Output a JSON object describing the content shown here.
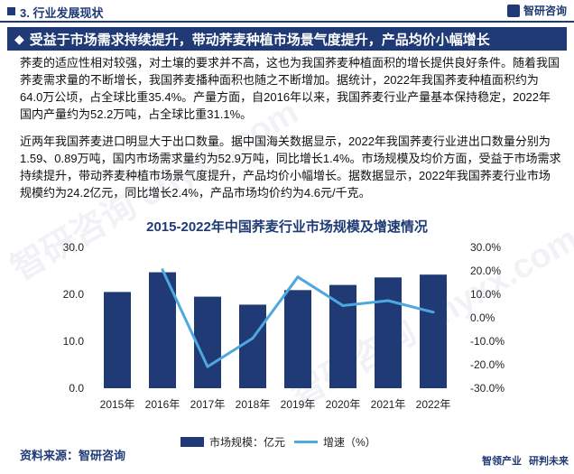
{
  "section": {
    "title": "3. 行业发展现状"
  },
  "brand": {
    "name": "智研咨询"
  },
  "headline": {
    "text": "受益于市场需求持续提升，带动荞麦种植市场景气度提升，产品均价小幅增长"
  },
  "paragraphs": [
    "荞麦的适应性相对较强，对土壤的要求并不高，这也为我国荞麦种植面积的增长提供良好条件。随着我国荞麦需求量的不断增长，我国荞麦播种面积也随之不断增加。据统计，2022年我国荞麦种植面积约为64.0万公顷，占全球比重35.4%。产量方面，自2016年以来，我国荞麦行业产量基本保持稳定，2022年国内产量约为52.2万吨，占全球比重31.1%。",
    "近两年我国荞麦进口明显大于出口数量。据中国海关数据显示，2022年我国荞麦行业进出口数量分别为1.59、0.89万吨，国内市场需求量约为52.9万吨，同比增长1.4%。市场规模及均价方面，受益于市场需求持续提升，带动荞麦种植市场景气度提升，产品均价小幅增长。据数据显示，2022年我国荞麦行业市场规模约为24.2亿元，同比增长2.4%，产品市场均价约为4.6元/千克。"
  ],
  "chart_data": {
    "type": "bar",
    "title": "2015-2022年中国荞麦行业市场规模及增速情况",
    "categories": [
      "2015年",
      "2016年",
      "2017年",
      "2018年",
      "2019年",
      "2020年",
      "2021年",
      "2022年"
    ],
    "series": [
      {
        "name": "市场规模：亿元",
        "type": "bar",
        "axis": "left",
        "color": "#1f3a75",
        "values": [
          20.5,
          24.7,
          19.5,
          17.8,
          20.9,
          22.0,
          23.6,
          24.2
        ]
      },
      {
        "name": "增速（%）",
        "type": "line",
        "axis": "right",
        "color": "#4ea8e0",
        "values": [
          null,
          20.5,
          -20.8,
          -8.7,
          17.4,
          5.2,
          7.3,
          2.4
        ]
      }
    ],
    "y_left": {
      "min": 0,
      "max": 30,
      "ticks": [
        "0.0",
        "10.0",
        "20.0",
        "30.0"
      ]
    },
    "y_right": {
      "min": -30,
      "max": 30,
      "ticks": [
        "-30.0%",
        "-20.0%",
        "-10.0%",
        "0.0%",
        "10.0%",
        "20.0%",
        "30.0%"
      ]
    },
    "legend_position": "bottom"
  },
  "legend": {
    "bar_label": "市场规模：亿元",
    "line_label": "增速（%）"
  },
  "footer": {
    "source": "资料来源：智研咨询",
    "right_a": "智领产业",
    "right_b": "研判未来"
  },
  "watermark": {
    "text": "智研咨询 chyxx.com"
  }
}
